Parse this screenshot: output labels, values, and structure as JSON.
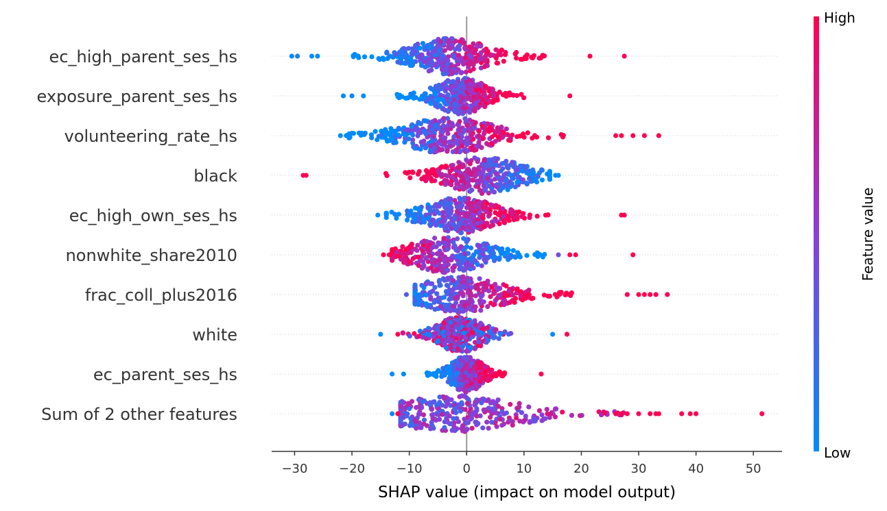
{
  "chart_data": {
    "type": "scatter",
    "subtype": "shap-beeswarm",
    "xlabel": "SHAP value (impact on model output)",
    "xlim": [
      -34,
      55
    ],
    "xticks": [
      -30,
      -20,
      -10,
      0,
      10,
      20,
      30,
      40,
      50
    ],
    "xtick_labels": [
      "−30",
      "−20",
      "−10",
      "0",
      "10",
      "20",
      "30",
      "40",
      "50"
    ],
    "colorbar": {
      "label": "Feature value",
      "high_label": "High",
      "low_label": "Low",
      "high_color": "#ff0051",
      "low_color": "#008bfb"
    },
    "zero_line_color": "#999999",
    "features": [
      {
        "name": "ec_high_parent_ses_hs",
        "min": -30.5,
        "max": 27.5,
        "center": -3,
        "corr": 1,
        "peak": 0.5,
        "outliers": [
          [
            -30.5,
            0.0
          ],
          [
            -29.5,
            0.1
          ],
          [
            -27,
            0.0
          ],
          [
            -26,
            0.0
          ],
          [
            21.5,
            1.0
          ],
          [
            27.5,
            1.0
          ]
        ]
      },
      {
        "name": "exposure_parent_ses_hs",
        "min": -21.5,
        "max": 18,
        "center": -1,
        "corr": 1,
        "peak": 0.5,
        "outliers": [
          [
            -21.5,
            0.0
          ],
          [
            -20,
            0.05
          ],
          [
            -18,
            0.0
          ],
          [
            18,
            1.0
          ]
        ]
      },
      {
        "name": "volunteering_rate_hs",
        "min": -22,
        "max": 33.5,
        "center": -3,
        "corr": 1,
        "peak": 0.4,
        "outliers": [
          [
            -22,
            0.0
          ],
          [
            -21,
            0.0
          ],
          [
            26,
            1.0
          ],
          [
            27,
            1.0
          ],
          [
            29,
            1.0
          ],
          [
            31,
            1.0
          ],
          [
            33.5,
            1.0
          ]
        ]
      },
      {
        "name": "black",
        "min": -28.5,
        "max": 16,
        "center": 3,
        "corr": -1,
        "peak": 0.6,
        "outliers": [
          [
            -28.5,
            1.0
          ],
          [
            -28,
            1.0
          ],
          [
            15.5,
            0.05
          ],
          [
            16,
            0.0
          ]
        ]
      },
      {
        "name": "ec_high_own_ses_hs",
        "min": -15.5,
        "max": 27.5,
        "center": -1,
        "corr": 1,
        "peak": 0.35,
        "outliers": [
          [
            -15.5,
            0.0
          ],
          [
            -14,
            0.0
          ],
          [
            27,
            1.0
          ],
          [
            27.5,
            1.0
          ]
        ]
      },
      {
        "name": "nonwhite_share2010",
        "min": -14.5,
        "max": 29,
        "center": -3,
        "corr": -1,
        "peak": 0.25,
        "outliers": [
          [
            -14.5,
            1.0
          ],
          [
            -13.5,
            1.0
          ],
          [
            16,
            0.4
          ],
          [
            18,
            1.0
          ],
          [
            19,
            1.0
          ],
          [
            29,
            1.0
          ]
        ]
      },
      {
        "name": "frac_coll_plus2016",
        "min": -10.5,
        "max": 35,
        "center": -1,
        "corr": 1,
        "peak": 0.15,
        "outliers": [
          [
            -10.5,
            0.3
          ],
          [
            28,
            1.0
          ],
          [
            30,
            1.0
          ],
          [
            31,
            1.0
          ],
          [
            32,
            1.0
          ],
          [
            33,
            1.0
          ],
          [
            35,
            1.0
          ]
        ]
      },
      {
        "name": "white",
        "min": -15,
        "max": 17.5,
        "center": -1,
        "corr": 0,
        "peak": 0.6,
        "outliers": [
          [
            -15,
            0.0
          ],
          [
            -12,
            1.0
          ],
          [
            15,
            0.0
          ],
          [
            17.5,
            1.0
          ]
        ]
      },
      {
        "name": "ec_parent_ses_hs",
        "min": -13,
        "max": 13,
        "center": 0,
        "corr": 1,
        "peak": 0.5,
        "outliers": [
          [
            -13,
            0.0
          ],
          [
            -11,
            0.0
          ],
          [
            13,
            1.0
          ]
        ]
      },
      {
        "name": "Sum of 2 other features",
        "min": -13,
        "max": 51.5,
        "center": -2,
        "corr": 0.3,
        "peak": 0.3,
        "outliers": [
          [
            -13,
            0.0
          ],
          [
            -12,
            1.0
          ],
          [
            26,
            1.0
          ],
          [
            27,
            1.0
          ],
          [
            28,
            1.0
          ],
          [
            30,
            1.0
          ],
          [
            32,
            1.0
          ],
          [
            33,
            1.0
          ],
          [
            33.5,
            1.0
          ],
          [
            37.5,
            1.0
          ],
          [
            39,
            1.0
          ],
          [
            40,
            1.0
          ],
          [
            51.5,
            1.0
          ]
        ]
      }
    ]
  }
}
